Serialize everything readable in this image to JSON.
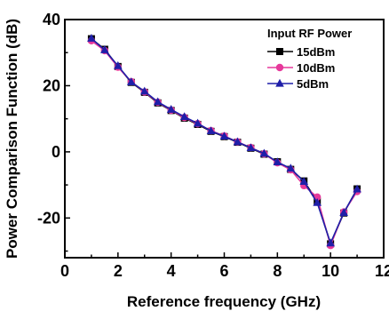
{
  "chart_data": {
    "type": "line",
    "title": "",
    "xlabel": "Reference frequency (GHz)",
    "ylabel": "Power Comparison Function (dB)",
    "xlim": [
      0,
      12
    ],
    "ylim": [
      -32,
      40
    ],
    "xticks": [
      0,
      2,
      4,
      6,
      8,
      10,
      12
    ],
    "yticks": [
      -20,
      0,
      20,
      40
    ],
    "grid": false,
    "legend": {
      "title": "Input RF Power",
      "placement": "top-right"
    },
    "x": [
      1,
      1.5,
      2,
      2.5,
      3,
      3.5,
      4,
      4.5,
      5,
      5.5,
      6,
      6.5,
      7,
      7.5,
      8,
      8.5,
      9,
      9.5,
      10,
      10.5,
      11
    ],
    "series": [
      {
        "name": "15dBm",
        "color": "#000000",
        "marker": "square",
        "values": [
          34.2,
          31.0,
          25.8,
          21.0,
          18.0,
          14.8,
          12.5,
          10.2,
          8.3,
          6.2,
          4.6,
          2.9,
          1.1,
          -0.7,
          -3.0,
          -5.3,
          -8.8,
          -15.0,
          -27.8,
          -18.5,
          -11.2
        ]
      },
      {
        "name": "10dBm",
        "color": "#e6399b",
        "marker": "circle",
        "values": [
          33.6,
          30.6,
          25.6,
          21.2,
          18.1,
          15.0,
          12.6,
          10.4,
          8.5,
          6.4,
          4.8,
          3.0,
          1.3,
          -0.6,
          -3.3,
          -5.4,
          -10.2,
          -13.7,
          -28.3,
          -18.2,
          -12.0
        ]
      },
      {
        "name": "5dBm",
        "color": "#1f1fa8",
        "marker": "triangle",
        "values": [
          34.3,
          30.8,
          26.0,
          21.1,
          18.3,
          15.1,
          12.8,
          10.6,
          8.6,
          6.3,
          4.7,
          3.0,
          1.2,
          -0.5,
          -3.1,
          -5.0,
          -9.0,
          -15.4,
          -27.6,
          -18.4,
          -11.3
        ]
      }
    ]
  }
}
